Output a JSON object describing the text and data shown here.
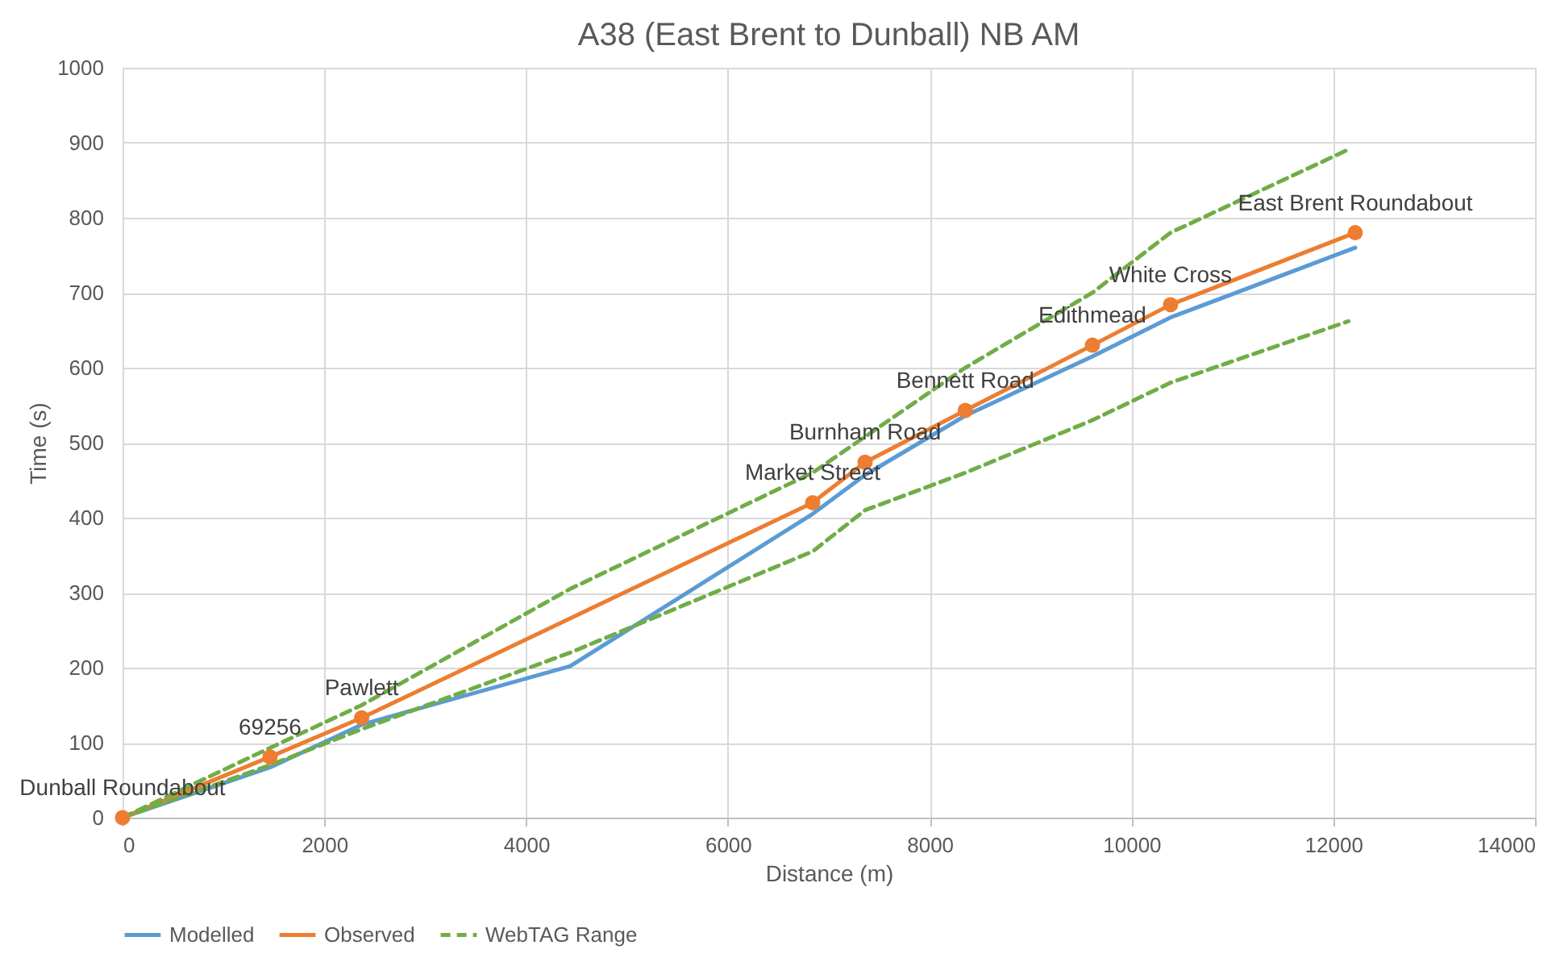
{
  "chart_data": {
    "type": "line",
    "title": "A38 (East Brent to Dunball) NB AM",
    "xlabel": "Distance (m)",
    "ylabel": "Time (s)",
    "xlim": [
      0,
      14000
    ],
    "xticks": [
      0,
      2000,
      4000,
      6000,
      8000,
      10000,
      12000,
      14000
    ],
    "ylim": [
      0,
      1000
    ],
    "yticks": [
      0,
      100,
      200,
      300,
      400,
      500,
      600,
      700,
      800,
      900,
      1000
    ],
    "grid": true,
    "legend": "bottom",
    "series": [
      {
        "name": "Modelled",
        "color": "#5b9bd5",
        "marker": "none",
        "line_style": "solid",
        "x": [
          0,
          1462,
          2370,
          4437,
          6840,
          7360,
          8353,
          9613,
          10387,
          12218
        ],
        "values": [
          0,
          67,
          124,
          202,
          405,
          457,
          536,
          615,
          667,
          760
        ]
      },
      {
        "name": "Observed",
        "color": "#ed7d31",
        "marker": "circle",
        "line_style": "solid",
        "x": [
          0,
          1462,
          2370,
          6840,
          7360,
          8353,
          9613,
          10387,
          12218
        ],
        "values": [
          0,
          81,
          133,
          420,
          474,
          543,
          630,
          684,
          780
        ]
      },
      {
        "name": "WebTAG Range",
        "color": "#70ad47",
        "marker": "none",
        "line_style": "dashed",
        "x": [
          0,
          1462,
          2370,
          4437,
          6840,
          7360,
          8353,
          9613,
          10387,
          12151
        ],
        "values": [
          0,
          93,
          150,
          305,
          460,
          508,
          600,
          700,
          780,
          891
        ]
      },
      {
        "color": "#70ad47",
        "marker": "none",
        "line_style": "dashed",
        "x": [
          0,
          1462,
          2370,
          4437,
          6840,
          7360,
          8353,
          9613,
          10387,
          12151
        ],
        "values": [
          0,
          70,
          118,
          220,
          355,
          410,
          460,
          530,
          580,
          662
        ]
      }
    ],
    "annotations": [
      {
        "text": "Dunball Roundabout",
        "x": 0,
        "y": 0
      },
      {
        "text": "69256",
        "x": 1462,
        "y": 81
      },
      {
        "text": "Pawlett",
        "x": 2370,
        "y": 133
      },
      {
        "text": "Market Street",
        "x": 6840,
        "y": 420
      },
      {
        "text": "Burnham Road",
        "x": 7360,
        "y": 474
      },
      {
        "text": "Bennett Road",
        "x": 8353,
        "y": 543
      },
      {
        "text": "Edithmead",
        "x": 9613,
        "y": 630
      },
      {
        "text": "White Cross",
        "x": 10387,
        "y": 684
      },
      {
        "text": "East Brent Roundabout",
        "x": 12218,
        "y": 780
      }
    ]
  }
}
